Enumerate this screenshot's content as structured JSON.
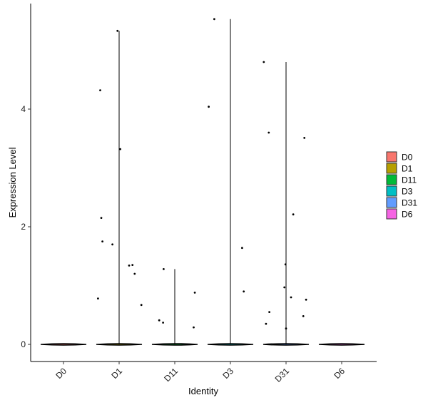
{
  "chart_data": {
    "type": "violin",
    "xlabel": "Identity",
    "ylabel": "Expression Level",
    "categories": [
      "D0",
      "D1",
      "D11",
      "D3",
      "D31",
      "D6"
    ],
    "colors": [
      "#F8766D",
      "#B79F00",
      "#00BA38",
      "#00BFC4",
      "#619CFF",
      "#F564E3"
    ],
    "ylim": [
      -0.3,
      5.8
    ],
    "yticks": [
      0,
      2,
      4
    ],
    "ytick_labels": [
      "0",
      "2",
      "4"
    ],
    "grid": false,
    "legend_position": "right",
    "legend": [
      "D0",
      "D1",
      "D11",
      "D3",
      "D31",
      "D6"
    ],
    "max_values": [
      0,
      5.33,
      1.28,
      5.53,
      4.8,
      0
    ],
    "points": [
      {
        "group": "D1",
        "offset": -0.38,
        "y": 0.78
      },
      {
        "group": "D1",
        "offset": -0.34,
        "y": 4.32
      },
      {
        "group": "D1",
        "offset": -0.32,
        "y": 2.15
      },
      {
        "group": "D1",
        "offset": -0.3,
        "y": 1.75
      },
      {
        "group": "D1",
        "offset": -0.12,
        "y": 1.7
      },
      {
        "group": "D1",
        "offset": -0.03,
        "y": 5.33
      },
      {
        "group": "D1",
        "offset": 0.02,
        "y": 3.32
      },
      {
        "group": "D1",
        "offset": 0.18,
        "y": 1.34
      },
      {
        "group": "D1",
        "offset": 0.24,
        "y": 1.35
      },
      {
        "group": "D1",
        "offset": 0.28,
        "y": 1.2
      },
      {
        "group": "D1",
        "offset": 0.4,
        "y": 0.67
      },
      {
        "group": "D11",
        "offset": -0.28,
        "y": 0.41
      },
      {
        "group": "D11",
        "offset": -0.2,
        "y": 1.28
      },
      {
        "group": "D11",
        "offset": -0.21,
        "y": 0.37
      },
      {
        "group": "D11",
        "offset": 0.34,
        "y": 0.29
      },
      {
        "group": "D11",
        "offset": 0.36,
        "y": 0.88
      },
      {
        "group": "D3",
        "offset": -0.39,
        "y": 4.04
      },
      {
        "group": "D3",
        "offset": -0.29,
        "y": 5.53
      },
      {
        "group": "D3",
        "offset": 0.21,
        "y": 1.64
      },
      {
        "group": "D3",
        "offset": 0.24,
        "y": 0.9
      },
      {
        "group": "D31",
        "offset": -0.4,
        "y": 4.8
      },
      {
        "group": "D31",
        "offset": -0.36,
        "y": 0.35
      },
      {
        "group": "D31",
        "offset": -0.31,
        "y": 3.6
      },
      {
        "group": "D31",
        "offset": -0.3,
        "y": 0.55
      },
      {
        "group": "D31",
        "offset": -0.03,
        "y": 0.97
      },
      {
        "group": "D31",
        "offset": -0.01,
        "y": 1.36
      },
      {
        "group": "D31",
        "offset": 0.0,
        "y": 0.27
      },
      {
        "group": "D31",
        "offset": 0.09,
        "y": 0.8
      },
      {
        "group": "D31",
        "offset": 0.13,
        "y": 2.21
      },
      {
        "group": "D31",
        "offset": 0.31,
        "y": 0.48
      },
      {
        "group": "D31",
        "offset": 0.33,
        "y": 3.51
      },
      {
        "group": "D31",
        "offset": 0.36,
        "y": 0.76
      }
    ]
  }
}
